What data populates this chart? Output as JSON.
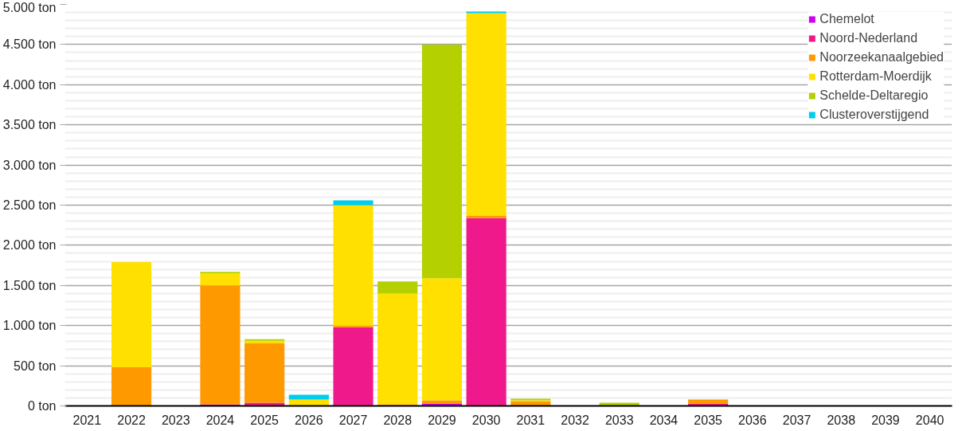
{
  "chart_data": {
    "type": "bar",
    "stacked": true,
    "categories": [
      "2021",
      "2022",
      "2023",
      "2024",
      "2025",
      "2026",
      "2027",
      "2028",
      "2029",
      "2030",
      "2031",
      "2032",
      "2033",
      "2034",
      "2035",
      "2036",
      "2037",
      "2038",
      "2039",
      "2040"
    ],
    "series": [
      {
        "name": "Chemelot",
        "color": "#cc00ee",
        "values": [
          0,
          0,
          0,
          0,
          0,
          0,
          0,
          0,
          30,
          0,
          0,
          0,
          0,
          0,
          0,
          0,
          0,
          0,
          0,
          0
        ]
      },
      {
        "name": "Noord-Nederland",
        "color": "#f0198c",
        "values": [
          0,
          0,
          0,
          20,
          40,
          0,
          980,
          0,
          0,
          2340,
          0,
          0,
          0,
          0,
          30,
          0,
          0,
          0,
          0,
          0
        ]
      },
      {
        "name": "Noorzeekanaalgebied",
        "color": "#ff9900",
        "values": [
          0,
          480,
          0,
          1480,
          740,
          0,
          20,
          20,
          40,
          30,
          60,
          0,
          0,
          0,
          50,
          0,
          0,
          0,
          0,
          0
        ]
      },
      {
        "name": "Rotterdam-Moerdijk",
        "color": "#ffe000",
        "values": [
          0,
          1310,
          0,
          150,
          30,
          80,
          1500,
          1380,
          1520,
          2520,
          10,
          0,
          0,
          0,
          0,
          0,
          0,
          0,
          0,
          0
        ]
      },
      {
        "name": "Schelde-Deltaregio",
        "color": "#b5d000",
        "values": [
          0,
          0,
          0,
          20,
          20,
          0,
          0,
          150,
          2910,
          0,
          20,
          0,
          40,
          0,
          0,
          0,
          0,
          0,
          0,
          0
        ]
      },
      {
        "name": "Clusteroverstijgend",
        "color": "#00ccee",
        "values": [
          0,
          0,
          0,
          0,
          0,
          60,
          60,
          0,
          0,
          20,
          0,
          0,
          0,
          0,
          0,
          0,
          0,
          0,
          0,
          0
        ]
      }
    ],
    "ylim": [
      0,
      5000
    ],
    "yticks": [
      {
        "value": 0,
        "label": "0 ton"
      },
      {
        "value": 500,
        "label": "500 ton"
      },
      {
        "value": 1000,
        "label": "1.000 ton"
      },
      {
        "value": 1500,
        "label": "1.500 ton"
      },
      {
        "value": 2000,
        "label": "2.000 ton"
      },
      {
        "value": 2500,
        "label": "2.500 ton"
      },
      {
        "value": 3000,
        "label": "3.000 ton"
      },
      {
        "value": 3500,
        "label": "3.500 ton"
      },
      {
        "value": 4000,
        "label": "4.000 ton"
      },
      {
        "value": 4500,
        "label": "4.500 ton"
      },
      {
        "value": 5000,
        "label": "5.000 ton"
      }
    ],
    "grid": "y",
    "legend": "top right"
  }
}
